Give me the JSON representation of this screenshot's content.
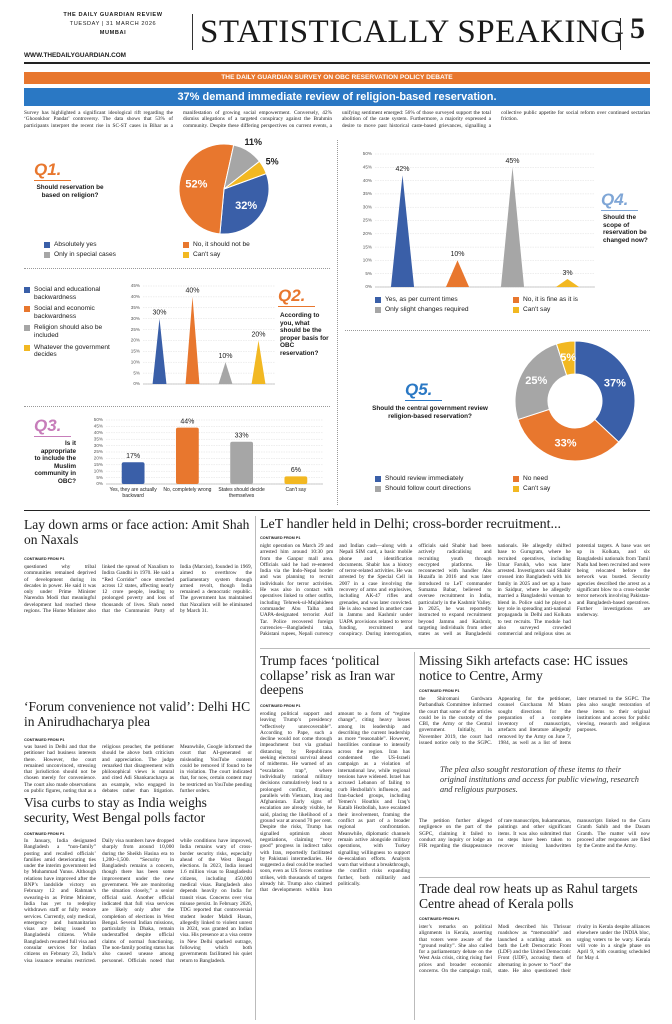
{
  "masthead": {
    "paper": "THE DAILY GUARDIAN REVIEW",
    "date": "TUESDAY | 31 MARCH 2026",
    "city": "MUMBAI",
    "url": "WWW.THEDAILYGUARDIAN.COM",
    "section": "STATISTICALLY SPEAKING",
    "page": "5"
  },
  "survey": {
    "banner": "THE DAILY GUARDIAN SURVEY ON OBC RESERVATION POLICY DEBATE",
    "headline": "37% demand immediate review of religion-based reservation.",
    "intro": "Survey has highlighted a significant ideological rift regarding the ‘Ghoonkhor Pandat’ controversy. The data shows that 53% of participants interpret the recent rise in SC-ST cases in Bihar as a manifestation of growing social empowerment. Conversely, 42% dismiss allegations of a targeted conspiracy against the Brahmin community. Despite these differing perspectives on current events, a unifying sentiment emerged: 56% of those surveyed support the total abolition of the caste system. Furthermore, a majority expressed a desire to move past historical caste-based grievances, signalling a collective public appetite for social reform over continued sectarian friction."
  },
  "chart_data": [
    {
      "type": "pie",
      "label": "Q1.",
      "title": "Should reservation be based on religion?",
      "categories": [
        "Absolutely yes",
        "No, it should not be",
        "Only in special cases",
        "Can't say"
      ],
      "values": [
        32,
        52,
        11,
        5
      ],
      "value_labels": [
        "32%",
        "52%",
        "11%",
        "5%"
      ],
      "colors": [
        "#3a5fa8",
        "#e8772e",
        "#a6a6a6",
        "#f2b822"
      ],
      "legend": true
    },
    {
      "type": "bar",
      "label": "Q2.",
      "title": "According to you, what should be the proper basis for OBC reservation?",
      "categories": [
        "Social and educational backwardness",
        "Social and economic backwardness",
        "Religion should also be included",
        "Whatever the government decides"
      ],
      "values": [
        30,
        40,
        10,
        20
      ],
      "value_labels": [
        "30%",
        "40%",
        "10%",
        "20%"
      ],
      "colors": [
        "#3a5fa8",
        "#e8772e",
        "#a6a6a6",
        "#f2b822"
      ],
      "bar_shape": "cone",
      "legend": true,
      "grid": true,
      "ylim": [
        0,
        45
      ],
      "yticks": [
        {
          "value": 0,
          "label": "0%"
        },
        {
          "value": 5,
          "label": "5%"
        },
        {
          "value": 10,
          "label": "10%"
        },
        {
          "value": 15,
          "label": "15%"
        },
        {
          "value": 20,
          "label": "20%"
        },
        {
          "value": 25,
          "label": "25%"
        },
        {
          "value": 30,
          "label": "30%"
        },
        {
          "value": 35,
          "label": "35%"
        },
        {
          "value": 40,
          "label": "40%"
        },
        {
          "value": 45,
          "label": "45%"
        }
      ]
    },
    {
      "type": "bar",
      "label": "Q3.",
      "title": "Is it appropriate to include the Muslim community in OBC?",
      "categories": [
        "Yes, they are actually backward",
        "No, completely wrong",
        "States should decide themselves",
        "Can't say"
      ],
      "values": [
        17,
        44,
        33,
        6
      ],
      "value_labels": [
        "17%",
        "44%",
        "33%",
        "6%"
      ],
      "colors": [
        "#3a5fa8",
        "#e8772e",
        "#a6a6a6",
        "#f2b822"
      ],
      "bar_shape": "cylinder",
      "legend": false,
      "category_labels": true,
      "grid": true,
      "ylim": [
        0,
        50
      ],
      "yticks": [
        {
          "value": 0,
          "label": "0%"
        },
        {
          "value": 5,
          "label": "5%"
        },
        {
          "value": 10,
          "label": "10%"
        },
        {
          "value": 15,
          "label": "15%"
        },
        {
          "value": 20,
          "label": "20%"
        },
        {
          "value": 25,
          "label": "25%"
        },
        {
          "value": 30,
          "label": "30%"
        },
        {
          "value": 35,
          "label": "35%"
        },
        {
          "value": 40,
          "label": "40%"
        },
        {
          "value": 45,
          "label": "45%"
        },
        {
          "value": 50,
          "label": "50%"
        }
      ]
    },
    {
      "type": "bar",
      "label": "Q4.",
      "title": "Should the scope of reservation be changed now?",
      "categories": [
        "Yes, as per current times",
        "No, it is fine as it is",
        "Only slight changes required",
        "Can't say"
      ],
      "values": [
        42,
        10,
        45,
        3
      ],
      "value_labels": [
        "42%",
        "10%",
        "45%",
        "3%"
      ],
      "colors": [
        "#3a5fa8",
        "#e8772e",
        "#a6a6a6",
        "#f2b822"
      ],
      "bar_shape": "cone",
      "legend": true,
      "grid": true,
      "ylim": [
        0,
        50
      ],
      "yticks": [
        {
          "value": 0,
          "label": "0%"
        },
        {
          "value": 5,
          "label": "5%"
        },
        {
          "value": 10,
          "label": "10%"
        },
        {
          "value": 15,
          "label": "15%"
        },
        {
          "value": 20,
          "label": "20%"
        },
        {
          "value": 25,
          "label": "25%"
        },
        {
          "value": 30,
          "label": "30%"
        },
        {
          "value": 35,
          "label": "35%"
        },
        {
          "value": 40,
          "label": "40%"
        },
        {
          "value": 45,
          "label": "45%"
        },
        {
          "value": 50,
          "label": "50%"
        }
      ]
    },
    {
      "type": "donut",
      "label": "Q5.",
      "title": "Should the central government review religion-based reservation?",
      "categories": [
        "Should review immediately",
        "No need",
        "Should follow court directions",
        "Can't say"
      ],
      "values": [
        37,
        33,
        25,
        5
      ],
      "value_labels": [
        "37%",
        "33%",
        "25%",
        "5%"
      ],
      "colors": [
        "#3a5fa8",
        "#e8772e",
        "#a6a6a6",
        "#f2b822"
      ],
      "legend": true
    }
  ],
  "articles": [
    {
      "headline": "Lay down arms or face action: Amit Shah on Naxals",
      "continued": "CONTINUED FROM P1",
      "body": [
        "questioned why tribal communities remained deprived of development during its decades in power. He said it was only under Prime Minister Narendra Modi that meaningful development had reached these regions. The Home Minister also linked the spread of Naxalism to Indira Gandhi in 1970. He said a “Red Corridor” once stretched across 12 states, affecting nearly 12 crore people, leading to prolonged poverty and loss of thousands of lives. Shah noted that the Communist Party of India (Marxist), founded in 1969, aimed to overthrow the parliamentary system through armed revolt, though India remained a democratic republic. The government has maintained that Naxalism will be eliminated by March 31."
      ]
    },
    {
      "headline": "‘Forum convenience not valid’: Delhi HC in Anirudhacharya plea",
      "continued": "CONTINUED FROM P1",
      "body": [
        "was based in Delhi and that the petitioner had business interests there. However, the court remained unconvinced, stressing that jurisdiction should not be chosen merely for convenience. The court also made observations on public figures, noting that as a religious preacher, the petitioner should be above both criticism and appreciation. The judge remarked that disagreement with philosophical views is natural and cited Adi Shankaracharya as an example, who engaged in debates rather than litigation. Meanwhile, Google informed the court that AI-generated or misleading YouTube content could be removed if found to be in violation. The court indicated that, for now, certain content may be restricted on YouTube pending further orders."
      ]
    },
    {
      "headline": "Visa curbs to stay as India weighs security, West Bengal polls factor",
      "continued": "CONTINUED FROM P1",
      "body": [
        "In January, India designated Bangladesh a “non-family” posting and recalled officials’ families amid deteriorating ties under the interim government led by Muhammad Yunus. Although relations have improved after the BNP’s landslide victory on February 12 and Rahman’s swearing-in as Prime Minister, India has yet to redeploy withdrawn staff or fully restore services. Currently, only medical, emergency and humanitarian visas are being issued to Bangladeshi citizens. While Bangladesh resumed full visa and consular services for Indian citizens on February 23, India’s visa issuance remains restricted. Daily visa numbers have dropped sharply from around 10,000 during the Sheikh Hasina era to 1,200–1,500. “Security in Bangladesh remains a concern, though there has been some improvement under the new government. We are monitoring the situation closely,” a senior official said. Another official indicated that full visa services are likely only after the completion of elections in West Bengal. Several Indian missions, particularly in Dhaka, remain understaffed despite official claims of normal functioning. The non-family posting status has also caused unease among personnel. Officials noted that while conditions have improved, India remains wary of cross-border security risks, especially ahead of the West Bengal elections. In 2023, India issued 1.6 million visas to Bangladeshi citizens, including 450,000 medical visas. Bangladesh also depends heavily on India for transit visas. Concerns over visa misuse persist. In February 2026, TDG reported that controversial student leader Mahdi Hasan, allegedly linked to violent unrest in 2024, was granted an Indian visa. His presence at a visa centre in New Delhi sparked outrage, following which both governments facilitated his quiet return to Bangladesh."
      ]
    },
    {
      "headline": "LeT handler held in Delhi; cross-border recruitment...",
      "continued": "CONTINUED FROM P1",
      "body": [
        "night operation on March 29 and arrested him around 10:30 pm from the Ganpur mall area. Officials said he had re-entered India via the Indo-Nepal border and was planning to recruit individuals for terror activities. He was also in contact with operatives linked to other outfits, including Tehreek-ul-Mujahideen commander Abu Talha and UAPA-designated terrorist Asif Tar. Police recovered foreign currencies—Bangladeshi taka, Pakistani rupees, Nepali currency and Indian cash—along with a Nepali SIM card, a basic mobile phone and identification documents. Shabir has a history of terror-related activities. He was arrested by the Special Cell in 2007 in a case involving the recovery of arms and explosives, including AK-47 rifles and grenades, and was later convicted. He is also wanted in another case in Jammu and Kashmir under UAPA provisions related to terror funding, recruitment and conspiracy. During interrogation, officials said Shabir had been actively radicalising and recruiting youth through encrypted platforms. He reconnected with handler Abu Huzaifa in 2016 and was later introduced to LeT commander Sumama Babar, believed to oversee recruitment in India, particularly in the Kashmir Valley. In 2025, he was reportedly instructed to expand recruitment beyond Jammu and Kashmir, targeting individuals from other states as well as Bangladeshi nationals. He allegedly shifted base to Gurugram, where he recruited operatives, including Umar Farukh, who was later arrested. Investigators said Shabir crossed into Bangladesh with his family in 2025 and set up a base in Saidpur, where he allegedly married a Bangladeshi woman to blend in. Police said he played a key role in spreading anti-national propaganda in Delhi and Kolkata to test recruits. The module had also surveyed crowded commercial and religious sites as potential targets. A base was set up in Kolkata, and six Bangladeshi nationals from Tamil Nadu had been recruited and were being relocated before the network was busted. Security agencies described the arrest as a significant blow to a cross-border terror network involving Pakistan- and Bangladesh-based operatives. Further investigations are underway."
      ]
    },
    {
      "headline": "Trump faces ‘political collapse’ risk as Iran war deepens",
      "continued": "CONTINUED FROM P1",
      "body": [
        "eroding political support and leaving Trump’s presidency “effectively unrecoverable”. According to Pape, such a decline would not come through impeachment but via gradual distancing by Republicans seeking electoral survival ahead of midterms. He warned of an “escalation trap”, where individually rational military decisions cumulatively lead to a prolonged conflict, drawing parallels with Vietnam, Iraq and Afghanistan. Early signs of escalation are already visible, he said, placing the likelihood of a ground war at around 70 per cent. Despite the risks, Trump has signalled optimism about negotiations, claiming “very good” progress in indirect talks with Iran, reportedly facilitated by Pakistani intermediaries. He suggested a deal could be reached soon, even as US forces continue strikes, with thousands of targets already hit. Trump also claimed that developments within Iran amount to a form of “regime change”, citing heavy losses among its leadership and describing the current leadership as more “reasonable”. However, hostilities continue to intensify across the region. Iran has condemned the US-Israeli campaign as a violation of international law, while regional tensions have widened. Israel has accused Lebanon of failing to curb Hezbollah’s influence, and Iran-backed groups, including Yemen’s Houthis and Iraq’s Kataib Hezbollah, have escalated their involvement, framing the conflict as part of a broader regional confrontation. Meanwhile, diplomatic channels remain active alongside military operations, with Turkey signalling willingness to support de-escalation efforts. Analysts warn that without a breakthrough, the conflict risks expanding further, both militarily and politically."
      ]
    },
    {
      "headline": "Missing Sikh artefacts case: HC issues notice to Centre, Army",
      "continued": "CONTINUED FROM P1",
      "body": [
        "the Shiromani Gurdwara Parbandhak Committee informed the court that some of the articles could be in the custody of the CBI, the Army or the Central government. Initially, in November 2019, the court had issued notice only to the SGPC. Appearing for the petitioner, counsel Gurcharan M Mann sought directions for the preparation of a complete inventory of manuscripts, artefacts and literature allegedly removed by the Army on June 7, 1984, as well as a list of items later returned to the SGPC. The plea also sought restoration of these items to their original institutions and access for public viewing, research and religious purposes.",
        "The petition further alleged negligence on the part of the SGPC, claiming it failed to conduct any inquiry or lodge an FIR regarding the disappearance of rare manuscripts, hukamnamas, paintings and other significant items. It was also submitted that no steps have been taken to recover missing handwritten manuscripts linked to the Guru Granth Sahib and the Dasam Granth. The matter will now proceed after responses are filed by the Centre and the Army."
      ],
      "pull_quote": "The plea also sought restoration of these items to their original institutions and access for public viewing, research and religious purposes."
    },
    {
      "headline": "Trade deal row heats up as Rahul targets Centre ahead of Kerala polls",
      "continued": "CONTINUED FROM P1",
      "body": [
        "ister’s remarks on political alignments in Kerala, asserting that voters were aware of the “ground reality”. She also called for a parliamentary debate on the West Asia crisis, citing rising fuel prices and broader economic concerns. On the campaign trail, Modi described his Thrissur roadshow as “memorable” and launched a scathing attack on both the Left Democratic Front (LDF) and the United Democratic Front (UDF), accusing them of alternating in power to “loot” the state. He also questioned their rivalry in Kerala despite alliances elsewhere under the INDIA bloc, urging voters to be wary. Kerala will vote in a single phase on April 9, with counting scheduled for May 4."
      ]
    }
  ]
}
